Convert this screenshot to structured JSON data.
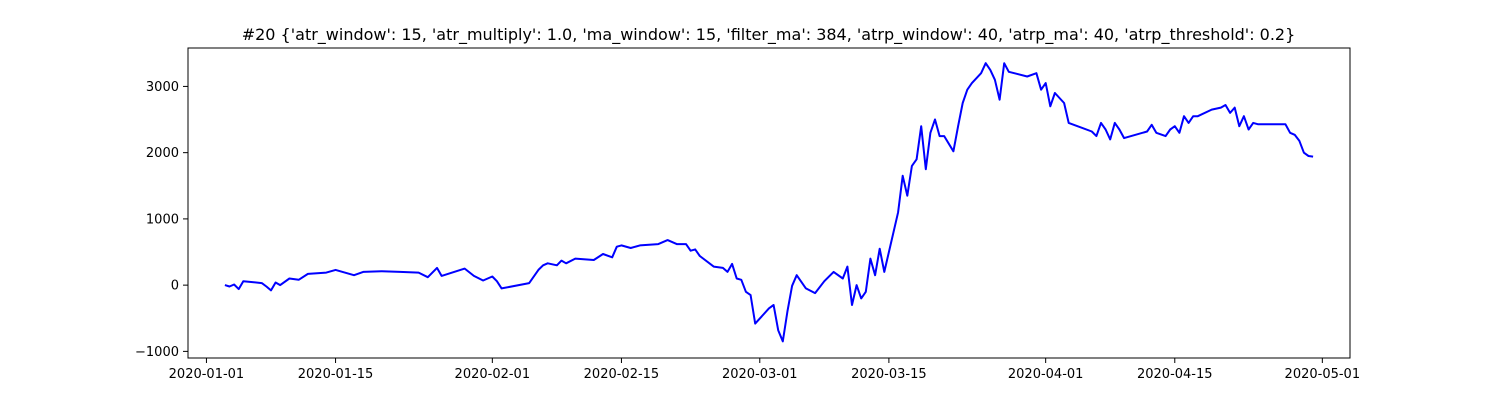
{
  "chart_data": {
    "type": "line",
    "title": "#20 {'atr_window': 15, 'atr_multiply': 1.0, 'ma_window': 15, 'filter_ma': 384, 'atrp_window': 40, 'atrp_ma': 40, 'atrp_threshold': 0.2}",
    "xlabel": "",
    "ylabel": "",
    "x_type": "date",
    "xlim": [
      "2019-12-30",
      "2020-05-04"
    ],
    "ylim": [
      -1100,
      3580
    ],
    "x_ticks": [
      "2020-01-01",
      "2020-01-15",
      "2020-02-01",
      "2020-02-15",
      "2020-03-01",
      "2020-03-15",
      "2020-04-01",
      "2020-04-15",
      "2020-05-01"
    ],
    "y_ticks": [
      -1000,
      0,
      1000,
      2000,
      3000
    ],
    "grid": false,
    "series": [
      {
        "color": "#0000ff",
        "points": [
          [
            "2020-01-03",
            0
          ],
          [
            "2020-01-03T12",
            -20
          ],
          [
            "2020-01-04",
            10
          ],
          [
            "2020-01-04T12",
            -60
          ],
          [
            "2020-01-05",
            60
          ],
          [
            "2020-01-07",
            30
          ],
          [
            "2020-01-07T12",
            -20
          ],
          [
            "2020-01-08",
            -80
          ],
          [
            "2020-01-08T12",
            40
          ],
          [
            "2020-01-09",
            0
          ],
          [
            "2020-01-10",
            100
          ],
          [
            "2020-01-11",
            80
          ],
          [
            "2020-01-12",
            170
          ],
          [
            "2020-01-14",
            190
          ],
          [
            "2020-01-15",
            230
          ],
          [
            "2020-01-16",
            190
          ],
          [
            "2020-01-17",
            150
          ],
          [
            "2020-01-18",
            200
          ],
          [
            "2020-01-20",
            210
          ],
          [
            "2020-01-22",
            200
          ],
          [
            "2020-01-24",
            190
          ],
          [
            "2020-01-25",
            120
          ],
          [
            "2020-01-26",
            260
          ],
          [
            "2020-01-26T12",
            140
          ],
          [
            "2020-01-29",
            250
          ],
          [
            "2020-01-30",
            140
          ],
          [
            "2020-01-31",
            70
          ],
          [
            "2020-02-01",
            130
          ],
          [
            "2020-02-01T12",
            60
          ],
          [
            "2020-02-02",
            -50
          ],
          [
            "2020-02-05",
            30
          ],
          [
            "2020-02-06",
            230
          ],
          [
            "2020-02-06T12",
            300
          ],
          [
            "2020-02-07",
            330
          ],
          [
            "2020-02-08",
            300
          ],
          [
            "2020-02-08T12",
            370
          ],
          [
            "2020-02-09",
            330
          ],
          [
            "2020-02-10",
            400
          ],
          [
            "2020-02-12",
            380
          ],
          [
            "2020-02-13",
            470
          ],
          [
            "2020-02-14",
            420
          ],
          [
            "2020-02-14T12",
            580
          ],
          [
            "2020-02-15",
            600
          ],
          [
            "2020-02-16",
            560
          ],
          [
            "2020-02-17",
            600
          ],
          [
            "2020-02-19",
            620
          ],
          [
            "2020-02-20",
            680
          ],
          [
            "2020-02-21",
            620
          ],
          [
            "2020-02-22",
            620
          ],
          [
            "2020-02-22T12",
            520
          ],
          [
            "2020-02-23",
            540
          ],
          [
            "2020-02-23T12",
            440
          ],
          [
            "2020-02-25",
            280
          ],
          [
            "2020-02-26",
            260
          ],
          [
            "2020-02-26T12",
            200
          ],
          [
            "2020-02-27",
            320
          ],
          [
            "2020-02-27T12",
            100
          ],
          [
            "2020-02-28",
            80
          ],
          [
            "2020-02-28T12",
            -100
          ],
          [
            "2020-02-29",
            -150
          ],
          [
            "2020-02-29T12",
            -580
          ],
          [
            "2020-03-02",
            -350
          ],
          [
            "2020-03-02T12",
            -300
          ],
          [
            "2020-03-03",
            -680
          ],
          [
            "2020-03-03T12",
            -850
          ],
          [
            "2020-03-04",
            -400
          ],
          [
            "2020-03-04T12",
            -10
          ],
          [
            "2020-03-05",
            150
          ],
          [
            "2020-03-05T12",
            50
          ],
          [
            "2020-03-06",
            -50
          ],
          [
            "2020-03-07",
            -120
          ],
          [
            "2020-03-08",
            60
          ],
          [
            "2020-03-09",
            200
          ],
          [
            "2020-03-10",
            100
          ],
          [
            "2020-03-10T12",
            280
          ],
          [
            "2020-03-11",
            -300
          ],
          [
            "2020-03-11T12",
            0
          ],
          [
            "2020-03-12",
            -200
          ],
          [
            "2020-03-12T12",
            -100
          ],
          [
            "2020-03-13",
            400
          ],
          [
            "2020-03-13T12",
            150
          ],
          [
            "2020-03-14",
            550
          ],
          [
            "2020-03-14T12",
            200
          ],
          [
            "2020-03-16",
            1100
          ],
          [
            "2020-03-16T12",
            1650
          ],
          [
            "2020-03-17",
            1350
          ],
          [
            "2020-03-17T12",
            1800
          ],
          [
            "2020-03-18",
            1900
          ],
          [
            "2020-03-18T12",
            2400
          ],
          [
            "2020-03-19",
            1750
          ],
          [
            "2020-03-19T12",
            2300
          ],
          [
            "2020-03-20",
            2500
          ],
          [
            "2020-03-20T12",
            2250
          ],
          [
            "2020-03-21",
            2250
          ],
          [
            "2020-03-22",
            2020
          ],
          [
            "2020-03-22T12",
            2400
          ],
          [
            "2020-03-23",
            2750
          ],
          [
            "2020-03-23T12",
            2950
          ],
          [
            "2020-03-24",
            3050
          ],
          [
            "2020-03-25",
            3200
          ],
          [
            "2020-03-25T12",
            3350
          ],
          [
            "2020-03-26",
            3250
          ],
          [
            "2020-03-26T12",
            3100
          ],
          [
            "2020-03-27",
            2800
          ],
          [
            "2020-03-27T12",
            3350
          ],
          [
            "2020-03-28",
            3220
          ],
          [
            "2020-03-30",
            3150
          ],
          [
            "2020-03-31",
            3200
          ],
          [
            "2020-03-31T12",
            2950
          ],
          [
            "2020-04-01",
            3050
          ],
          [
            "2020-04-01T12",
            2700
          ],
          [
            "2020-04-02",
            2900
          ],
          [
            "2020-04-03",
            2750
          ],
          [
            "2020-04-03T12",
            2450
          ],
          [
            "2020-04-06",
            2320
          ],
          [
            "2020-04-06T12",
            2250
          ],
          [
            "2020-04-07",
            2450
          ],
          [
            "2020-04-07T12",
            2350
          ],
          [
            "2020-04-08",
            2200
          ],
          [
            "2020-04-08T12",
            2450
          ],
          [
            "2020-04-09",
            2350
          ],
          [
            "2020-04-09T12",
            2220
          ],
          [
            "2020-04-12",
            2320
          ],
          [
            "2020-04-12T12",
            2420
          ],
          [
            "2020-04-13",
            2300
          ],
          [
            "2020-04-14",
            2250
          ],
          [
            "2020-04-14T12",
            2350
          ],
          [
            "2020-04-15",
            2400
          ],
          [
            "2020-04-15T12",
            2300
          ],
          [
            "2020-04-16",
            2550
          ],
          [
            "2020-04-16T12",
            2450
          ],
          [
            "2020-04-17",
            2550
          ],
          [
            "2020-04-17T12",
            2550
          ],
          [
            "2020-04-19",
            2650
          ],
          [
            "2020-04-20",
            2680
          ],
          [
            "2020-04-20T12",
            2720
          ],
          [
            "2020-04-21",
            2600
          ],
          [
            "2020-04-21T12",
            2680
          ],
          [
            "2020-04-22",
            2400
          ],
          [
            "2020-04-22T12",
            2550
          ],
          [
            "2020-04-23",
            2350
          ],
          [
            "2020-04-23T12",
            2450
          ],
          [
            "2020-04-24",
            2430
          ],
          [
            "2020-04-27",
            2430
          ],
          [
            "2020-04-27T12",
            2300
          ],
          [
            "2020-04-28",
            2270
          ],
          [
            "2020-04-28T12",
            2180
          ],
          [
            "2020-04-29",
            2000
          ],
          [
            "2020-04-29T12",
            1950
          ],
          [
            "2020-04-30",
            1940
          ]
        ]
      }
    ]
  }
}
